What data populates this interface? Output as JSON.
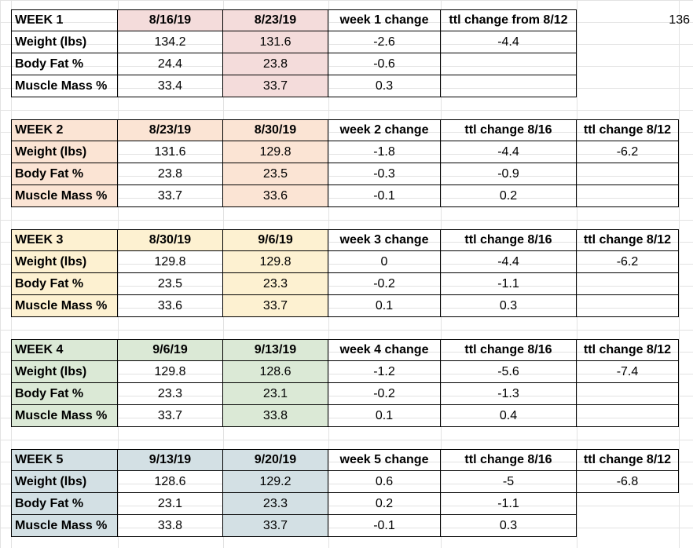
{
  "colors": {
    "week1": "#f4dcdb",
    "week2": "#fbe4d4",
    "week3": "#fdf1d1",
    "week4": "#dbe9d6",
    "week5": "#d3e0e4"
  },
  "side_value": "136",
  "weeks": [
    {
      "header": [
        "WEEK 1",
        "8/16/19",
        "8/23/19",
        "week 1 change",
        "ttl change from 8/12"
      ],
      "rows": [
        [
          "Weight (lbs)",
          "134.2",
          "131.6",
          "-2.6",
          "-4.4"
        ],
        [
          "Body Fat %",
          "24.4",
          "23.8",
          "-0.6",
          ""
        ],
        [
          "Muscle Mass %",
          "33.4",
          "33.7",
          "0.3",
          ""
        ]
      ]
    },
    {
      "header": [
        "WEEK 2",
        "8/23/19",
        "8/30/19",
        "week 2 change",
        "ttl change 8/16",
        "ttl change 8/12"
      ],
      "rows": [
        [
          "Weight (lbs)",
          "131.6",
          "129.8",
          "-1.8",
          "-4.4",
          "-6.2"
        ],
        [
          "Body Fat %",
          "23.8",
          "23.5",
          "-0.3",
          "-0.9",
          ""
        ],
        [
          "Muscle Mass %",
          "33.7",
          "33.6",
          "-0.1",
          "0.2",
          ""
        ]
      ]
    },
    {
      "header": [
        "WEEK 3",
        "8/30/19",
        "9/6/19",
        "week 3 change",
        "ttl change 8/16",
        "ttl change 8/12"
      ],
      "rows": [
        [
          "Weight (lbs)",
          "129.8",
          "129.8",
          "0",
          "-4.4",
          "-6.2"
        ],
        [
          "Body Fat %",
          "23.5",
          "23.3",
          "-0.2",
          "-1.1",
          ""
        ],
        [
          "Muscle Mass %",
          "33.6",
          "33.7",
          "0.1",
          "0.3",
          ""
        ]
      ]
    },
    {
      "header": [
        "WEEK 4",
        "9/6/19",
        "9/13/19",
        "week 4 change",
        "ttl change 8/16",
        "ttl change 8/12"
      ],
      "rows": [
        [
          "Weight (lbs)",
          "129.8",
          "128.6",
          "-1.2",
          "-5.6",
          "-7.4"
        ],
        [
          "Body Fat %",
          "23.3",
          "23.1",
          "-0.2",
          "-1.3",
          ""
        ],
        [
          "Muscle Mass %",
          "33.7",
          "33.8",
          "0.1",
          "0.4",
          ""
        ]
      ]
    },
    {
      "header": [
        "WEEK 5",
        "9/13/19",
        "9/20/19",
        "week 5 change",
        "ttl change 8/16",
        "ttl change 8/12"
      ],
      "rows": [
        [
          "Weight (lbs)",
          "128.6",
          "129.2",
          "0.6",
          "-5",
          "-6.8"
        ],
        [
          "Body Fat %",
          "23.1",
          "23.3",
          "0.2",
          "-1.1",
          ""
        ],
        [
          "Muscle Mass %",
          "33.8",
          "33.7",
          "-0.1",
          "0.3",
          ""
        ]
      ]
    }
  ]
}
